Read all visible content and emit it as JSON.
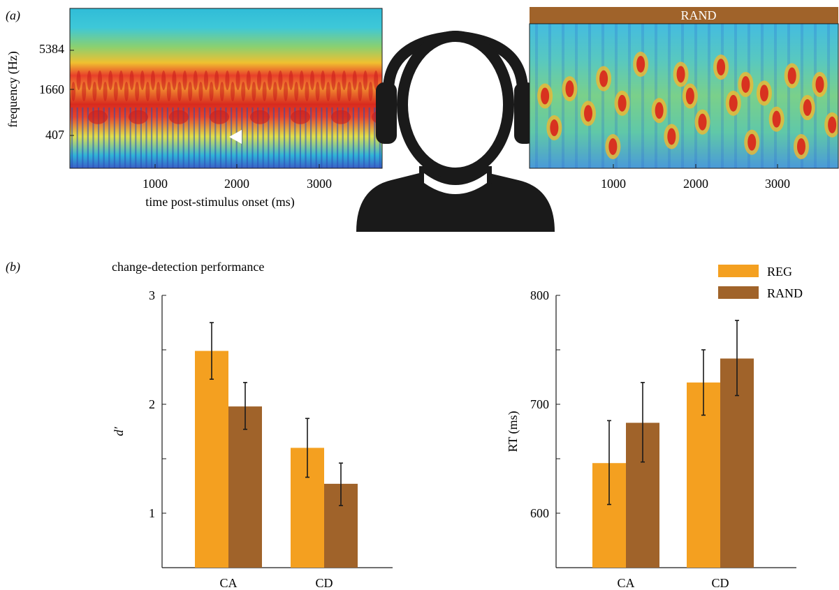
{
  "colors": {
    "reg": "#f4a020",
    "rand": "#a0632a",
    "axis": "#1a1a1a",
    "listener": "#1a1a1a",
    "marker": "#ffffff"
  },
  "panel_a": {
    "label": "(a)",
    "listener_icon": "listener-with-headphones-icon",
    "left": {
      "ylabel": "frequency (Hz)",
      "xlabel": "time post-stimulus onset (ms)",
      "yticks": [
        "5384",
        "1660",
        "407"
      ],
      "xticks": [
        "1000",
        "2000",
        "3000"
      ],
      "marker": "change-onset-marker-icon"
    },
    "right": {
      "title": "RAND",
      "xticks": [
        "1000",
        "2000",
        "3000"
      ]
    }
  },
  "panel_b": {
    "label": "(b)",
    "title": "change-detection performance",
    "legend": [
      "REG",
      "RAND"
    ]
  },
  "chart_data": [
    {
      "type": "bar",
      "title": "change-detection performance",
      "xlabel": "",
      "ylabel": "d′",
      "categories": [
        "CA",
        "CD"
      ],
      "ylim": [
        0.5,
        3
      ],
      "yticks": [
        "1",
        "2",
        "3"
      ],
      "series": [
        {
          "name": "REG",
          "values": [
            2.49,
            1.6
          ],
          "err_low": [
            2.23,
            1.33
          ],
          "err_high": [
            2.75,
            1.87
          ]
        },
        {
          "name": "RAND",
          "values": [
            1.98,
            1.27
          ],
          "err_low": [
            1.77,
            1.07
          ],
          "err_high": [
            2.2,
            1.46
          ]
        }
      ]
    },
    {
      "type": "bar",
      "title": "",
      "xlabel": "",
      "ylabel": "RT (ms)",
      "categories": [
        "CA",
        "CD"
      ],
      "ylim": [
        550,
        800
      ],
      "yticks": [
        "600",
        "700",
        "800"
      ],
      "legend": "top-right",
      "series": [
        {
          "name": "REG",
          "values": [
            646,
            720
          ],
          "err_low": [
            608,
            690
          ],
          "err_high": [
            685,
            750
          ]
        },
        {
          "name": "RAND",
          "values": [
            683,
            742
          ],
          "err_low": [
            647,
            708
          ],
          "err_high": [
            720,
            777
          ]
        }
      ]
    },
    {
      "type": "heatmap",
      "title": "",
      "xlabel": "time post-stimulus onset (ms)",
      "ylabel": "frequency (Hz)",
      "xticks": [
        1000,
        2000,
        3000
      ],
      "yticks": [
        407,
        1660,
        5384
      ],
      "xlim": [
        0,
        3900
      ]
    },
    {
      "type": "heatmap",
      "title": "RAND",
      "xticks": [
        1000,
        2000,
        3000
      ],
      "xlim": [
        0,
        3900
      ]
    }
  ]
}
